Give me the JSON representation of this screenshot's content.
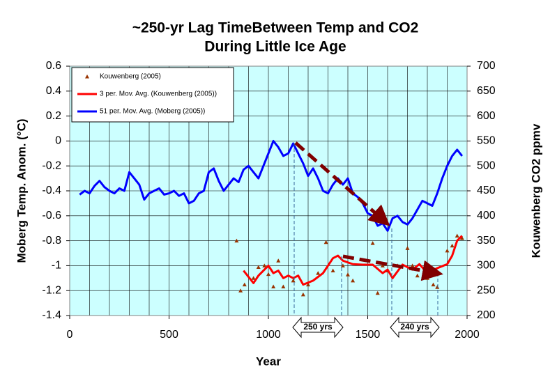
{
  "chart_data": {
    "type": "line",
    "title": [
      "~250-yr Lag TimeBetween Temp and CO2",
      "During Little Ice Age"
    ],
    "x_label": "Year",
    "y_label": "Moberg Temp. Anom. (°C)",
    "y2_label": "Kouwenberg CO2 ppmv",
    "annotations": [
      "250 yrs",
      "240 yrs"
    ],
    "xlim": [
      0,
      2000
    ],
    "xticks": [
      0,
      500,
      1000,
      1500,
      2000
    ],
    "xgrid": [
      0,
      100,
      200,
      300,
      400,
      500,
      600,
      700,
      800,
      900,
      1000,
      1100,
      1200,
      1300,
      1400,
      1500,
      1600,
      1700,
      1800,
      1900,
      2000
    ],
    "ylim": [
      -1.4,
      0.6
    ],
    "yticks": [
      -1.4,
      -1.2,
      -1,
      -0.8,
      -0.6,
      -0.4,
      -0.2,
      0,
      0.2,
      0.4,
      0.6
    ],
    "y2lim": [
      200,
      700
    ],
    "y2ticks": [
      200,
      250,
      300,
      350,
      400,
      450,
      500,
      550,
      600,
      650,
      700
    ],
    "grid": true,
    "background": "#ccffff",
    "legend": "upper left",
    "series": [
      {
        "name": "Kouwenberg (2005)",
        "type": "scatter",
        "axis": "y2",
        "color": "#993300",
        "x": [
          840,
          860,
          880,
          925,
          950,
          980,
          1000,
          1025,
          1050,
          1075,
          1125,
          1175,
          1200,
          1250,
          1290,
          1325,
          1375,
          1400,
          1425,
          1525,
          1550,
          1575,
          1600,
          1650,
          1700,
          1725,
          1750,
          1800,
          1830,
          1850,
          1900,
          1925,
          1950,
          1975
        ],
        "values": [
          350,
          250,
          262,
          275,
          297,
          300,
          283,
          258,
          310,
          258,
          270,
          242,
          262,
          285,
          347,
          290,
          300,
          282,
          270,
          345,
          245,
          300,
          290,
          300,
          335,
          300,
          280,
          275,
          262,
          257,
          330,
          340,
          360,
          355
        ]
      },
      {
        "name": "3 per. Mov. Avg. (Kouwenberg (2005))",
        "type": "line",
        "axis": "y2",
        "color": "#ff0000",
        "x": [
          875,
          925,
          950,
          1000,
          1025,
          1050,
          1075,
          1100,
          1125,
          1150,
          1175,
          1225,
          1275,
          1325,
          1350,
          1375,
          1425,
          1475,
          1525,
          1575,
          1600,
          1625,
          1675,
          1725,
          1760,
          1800,
          1850,
          1900,
          1925,
          1950,
          1975
        ],
        "values": [
          290,
          265,
          280,
          300,
          285,
          290,
          275,
          280,
          275,
          280,
          262,
          270,
          285,
          315,
          320,
          310,
          303,
          302,
          302,
          285,
          292,
          275,
          302,
          292,
          303,
          285,
          295,
          303,
          320,
          350,
          360
        ]
      },
      {
        "name": "51 per. Mov. Avg. (Moberg (2005))",
        "type": "line",
        "axis": "y",
        "color": "#0000ff",
        "x": [
          50,
          75,
          100,
          125,
          150,
          175,
          200,
          225,
          250,
          275,
          300,
          325,
          350,
          375,
          400,
          425,
          450,
          475,
          500,
          525,
          550,
          575,
          600,
          625,
          650,
          675,
          700,
          725,
          750,
          775,
          800,
          825,
          850,
          875,
          900,
          925,
          950,
          975,
          1000,
          1025,
          1050,
          1075,
          1100,
          1125,
          1150,
          1175,
          1200,
          1225,
          1250,
          1275,
          1300,
          1325,
          1350,
          1375,
          1400,
          1425,
          1450,
          1475,
          1500,
          1525,
          1550,
          1575,
          1600,
          1625,
          1650,
          1675,
          1700,
          1725,
          1750,
          1775,
          1800,
          1825,
          1850,
          1875,
          1900,
          1925,
          1950,
          1975
        ],
        "values": [
          -0.43,
          -0.4,
          -0.42,
          -0.36,
          -0.32,
          -0.37,
          -0.4,
          -0.42,
          -0.38,
          -0.4,
          -0.25,
          -0.3,
          -0.35,
          -0.47,
          -0.42,
          -0.4,
          -0.38,
          -0.43,
          -0.42,
          -0.4,
          -0.44,
          -0.42,
          -0.5,
          -0.48,
          -0.42,
          -0.4,
          -0.25,
          -0.22,
          -0.32,
          -0.4,
          -0.35,
          -0.3,
          -0.33,
          -0.23,
          -0.2,
          -0.25,
          -0.3,
          -0.2,
          -0.1,
          0,
          -0.05,
          -0.12,
          -0.1,
          -0.02,
          -0.1,
          -0.18,
          -0.28,
          -0.22,
          -0.3,
          -0.4,
          -0.42,
          -0.35,
          -0.3,
          -0.35,
          -0.3,
          -0.42,
          -0.45,
          -0.5,
          -0.58,
          -0.6,
          -0.68,
          -0.66,
          -0.72,
          -0.62,
          -0.6,
          -0.65,
          -0.67,
          -0.62,
          -0.55,
          -0.48,
          -0.5,
          -0.52,
          -0.42,
          -0.3,
          -0.2,
          -0.12,
          -0.07,
          -0.12
        ]
      }
    ]
  }
}
